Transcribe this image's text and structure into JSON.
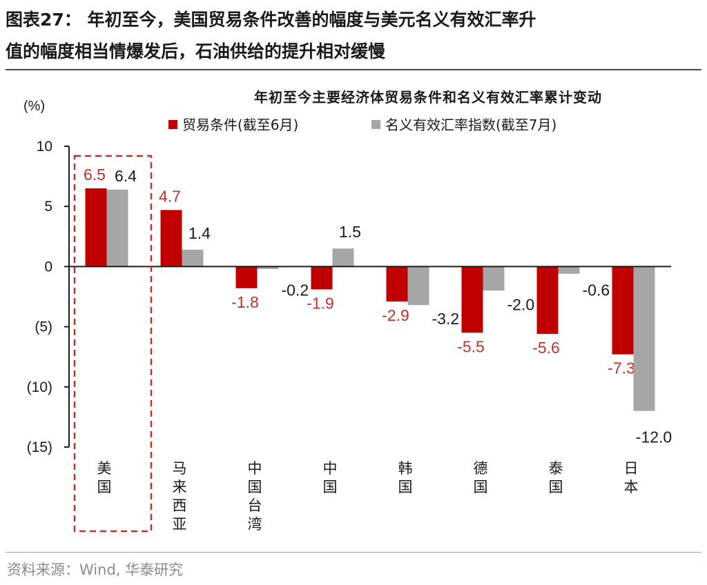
{
  "figure": {
    "title_line1": "图表27： 年初至今，美国贸易条件改善的幅度与美元名义有效汇率升",
    "title_line2": "值的幅度相当情爆发后，石油供给的提升相对缓慢"
  },
  "source": "资料来源：Wind, 华泰研究",
  "chart_data": {
    "type": "bar",
    "title": "年初至今主要经济体贸易条件和名义有效汇率累计变动",
    "ylabel": "(%)",
    "ylim": [
      -15,
      10
    ],
    "yticks": [
      10,
      5,
      0,
      -5,
      -10,
      -15
    ],
    "ytick_labels": [
      "10",
      "5",
      "0",
      "(5)",
      "(10)",
      "(15)"
    ],
    "categories": [
      "美国",
      "马来西亚",
      "中国台湾",
      "中国",
      "韩国",
      "德国",
      "泰国",
      "日本"
    ],
    "series": [
      {
        "name": "贸易条件(截至6月)",
        "color": "#c00000",
        "label_color": "#c0302a",
        "values": [
          6.5,
          4.7,
          -1.8,
          -1.9,
          -2.9,
          -5.5,
          -5.6,
          -7.3
        ],
        "labels": [
          "6.5",
          "4.7",
          "-1.8",
          "-1.9",
          "-2.9",
          "-5.5",
          "-5.6",
          "-7.3"
        ]
      },
      {
        "name": "名义有效汇率指数(截至7月)",
        "color": "#a6a6a6",
        "label_color": "#1a1a1a",
        "values": [
          6.4,
          1.4,
          -0.2,
          1.5,
          -3.2,
          -2.0,
          -0.6,
          -12.0
        ],
        "labels": [
          "6.4",
          "1.4",
          "-0.2",
          "1.5",
          "-3.2",
          "-2.0",
          "-0.6",
          "-12.0"
        ]
      }
    ],
    "legend": "top",
    "grid": false,
    "highlight_category": "美国",
    "highlight_color": "#c0302a"
  }
}
